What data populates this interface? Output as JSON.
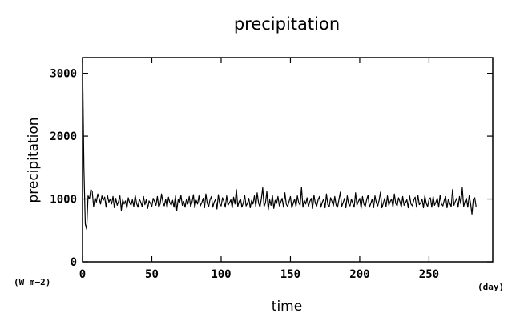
{
  "chart_data": {
    "type": "line",
    "title": "precipitation",
    "xlabel": "time",
    "ylabel": "precipitation",
    "x_unit": "(day)",
    "y_unit": "(W m−2)",
    "xlim": [
      0,
      296
    ],
    "ylim": [
      0,
      3250
    ],
    "x_ticks": [
      0,
      50,
      100,
      150,
      200,
      250
    ],
    "x_tick_labels": [
      "0",
      "50",
      "100",
      "150",
      "200",
      "250"
    ],
    "y_ticks": [
      0,
      1000,
      2000,
      3000
    ],
    "y_tick_labels": [
      "0",
      "1000",
      "2000",
      "3000"
    ],
    "grid": false,
    "legend": "none",
    "line_color": "#000000",
    "series": [
      {
        "x_start": 0,
        "x_step": 1,
        "values": [
          3200,
          1500,
          600,
          520,
          1050,
          1000,
          1150,
          1120,
          880,
          1020,
          950,
          1080,
          1010,
          920,
          1050,
          980,
          1030,
          870,
          1060,
          950,
          1000,
          920,
          1040,
          860,
          1010,
          900,
          960,
          1050,
          820,
          990,
          920,
          970,
          850,
          1020,
          940,
          900,
          990,
          880,
          1060,
          930,
          870,
          1000,
          950,
          880,
          1040,
          910,
          990,
          850,
          970,
          930,
          880,
          1010,
          960,
          900,
          1040,
          870,
          920,
          1080,
          950,
          890,
          1000,
          860,
          1030,
          940,
          900,
          980,
          870,
          1050,
          820,
          990,
          940,
          1060,
          900,
          960,
          870,
          1000,
          920,
          1040,
          880,
          950,
          1070,
          860,
          980,
          920,
          1050,
          890,
          940,
          1010,
          860,
          1080,
          930,
          880,
          990,
          1040,
          870,
          950,
          1000,
          840,
          1070,
          920,
          890,
          1020,
          960,
          870,
          1050,
          900,
          940,
          990,
          860,
          1030,
          920,
          1150,
          880,
          960,
          1000,
          870,
          940,
          1060,
          890,
          930,
          1010,
          860,
          980,
          920,
          1050,
          880,
          1100,
          940,
          870,
          1000,
          1180,
          880,
          940,
          1120,
          830,
          990,
          900,
          1060,
          850,
          980,
          930,
          1040,
          890,
          950,
          1010,
          870,
          1100,
          920,
          880,
          960,
          1040,
          860,
          930,
          1000,
          880,
          1050,
          940,
          900,
          1190,
          870,
          980,
          920,
          1020,
          880,
          960,
          1010,
          850,
          1060,
          930,
          890,
          990,
          1040,
          870,
          950,
          1000,
          860,
          1080,
          910,
          880,
          1020,
          960,
          890,
          1040,
          900,
          870,
          990,
          1110,
          880,
          940,
          1010,
          860,
          1050,
          920,
          890,
          1000,
          930,
          870,
          1100,
          900,
          960,
          1010,
          850,
          1040,
          920,
          880,
          990,
          1060,
          870,
          930,
          1000,
          860,
          1050,
          940,
          890,
          980,
          1110,
          860,
          930,
          1010,
          880,
          1050,
          900,
          960,
          1000,
          870,
          1080,
          930,
          890,
          1020,
          960,
          870,
          1040,
          900,
          940,
          990,
          860,
          1050,
          920,
          890,
          980,
          1030,
          870,
          1060,
          910,
          940,
          1000,
          860,
          1050,
          930,
          880,
          990,
          1020,
          870,
          1040,
          900,
          950,
          1010,
          870,
          1060,
          920,
          890,
          980,
          1040,
          860,
          1000,
          930,
          880,
          1150,
          900,
          960,
          1010,
          870,
          1040,
          920,
          1180,
          880,
          960,
          1010,
          870,
          1050,
          930,
          760,
          1000,
          1020,
          880
        ]
      }
    ]
  }
}
